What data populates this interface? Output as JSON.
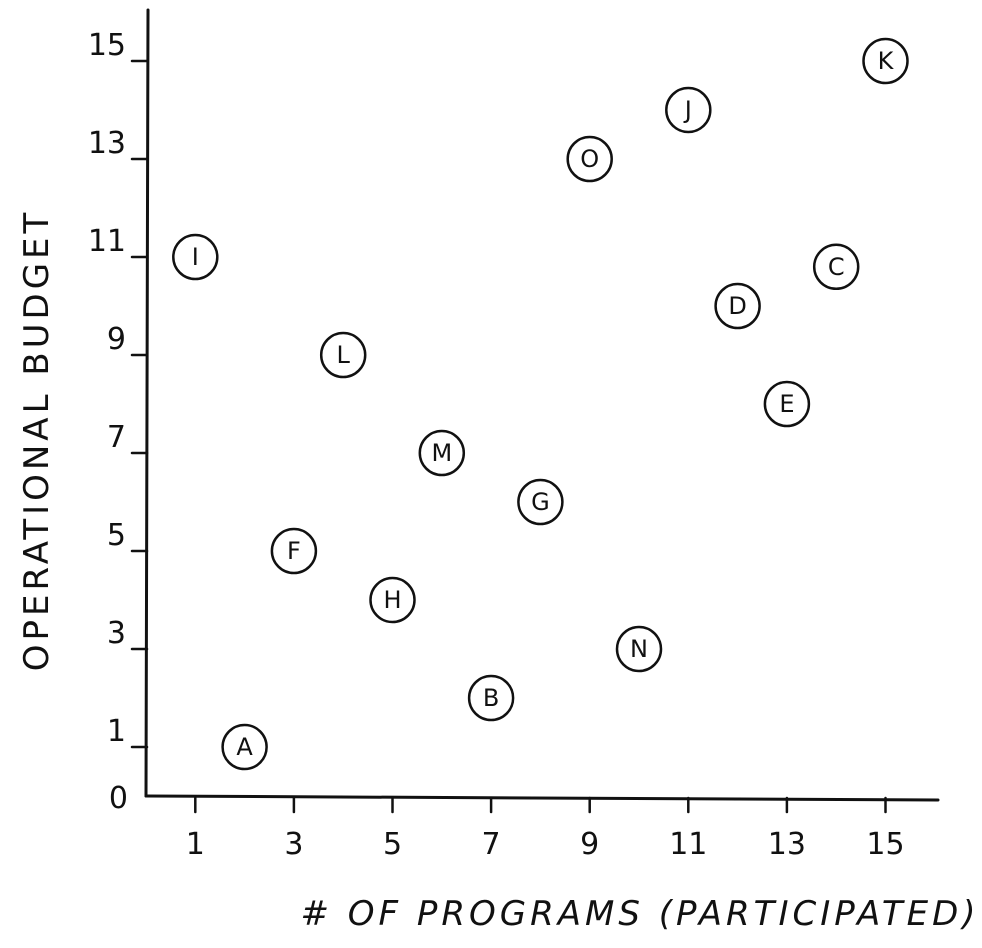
{
  "chart_data": {
    "type": "scatter",
    "title": "",
    "xlabel": "# OF PROGRAMS (PARTICIPATED)",
    "ylabel": "OPERATIONAL BUDGET",
    "xlim": [
      0,
      16
    ],
    "ylim": [
      0,
      15.5
    ],
    "x_ticks": [
      "1",
      "3",
      "5",
      "7",
      "9",
      "11",
      "13",
      "15"
    ],
    "y_ticks": [
      "0",
      "1",
      "3",
      "5",
      "7",
      "9",
      "11",
      "13",
      "15"
    ],
    "grid": false,
    "points": [
      {
        "label": "A",
        "x": 2,
        "y": 1
      },
      {
        "label": "B",
        "x": 7,
        "y": 2
      },
      {
        "label": "C",
        "x": 14,
        "y": 10.8
      },
      {
        "label": "D",
        "x": 12,
        "y": 10
      },
      {
        "label": "E",
        "x": 13,
        "y": 8
      },
      {
        "label": "F",
        "x": 3,
        "y": 5
      },
      {
        "label": "G",
        "x": 8,
        "y": 6
      },
      {
        "label": "H",
        "x": 5,
        "y": 4
      },
      {
        "label": "I",
        "x": 1,
        "y": 11
      },
      {
        "label": "J",
        "x": 11,
        "y": 14
      },
      {
        "label": "K",
        "x": 15,
        "y": 15
      },
      {
        "label": "L",
        "x": 4,
        "y": 9
      },
      {
        "label": "M",
        "x": 6,
        "y": 7
      },
      {
        "label": "N",
        "x": 10,
        "y": 3
      },
      {
        "label": "O",
        "x": 9,
        "y": 13
      }
    ]
  }
}
